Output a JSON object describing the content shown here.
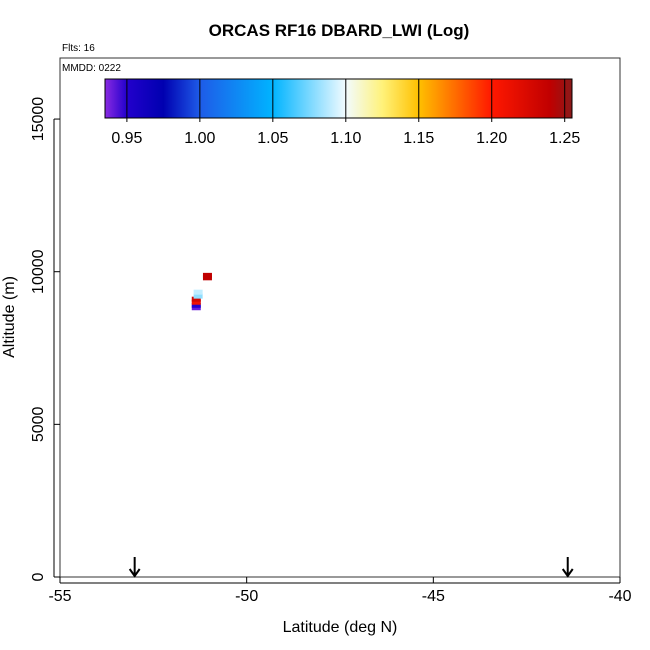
{
  "chart_data": {
    "type": "scatter",
    "title": "ORCAS RF16 DBARD_LWI (Log)",
    "annotations": {
      "flights": "Flts: 16",
      "mmdd": "MMDD: 0222"
    },
    "xlabel": "Latitude (deg N)",
    "ylabel": "Altitude (m)",
    "xlim": [
      -55,
      -40
    ],
    "ylim": [
      0,
      17000
    ],
    "xticks": [
      -55,
      -50,
      -45,
      -40
    ],
    "xtick_labels": [
      "-55",
      "-50",
      "-45",
      "-40"
    ],
    "yticks": [
      0,
      5000,
      10000,
      15000
    ],
    "ytick_labels": [
      "0",
      "5000",
      "10000",
      "15000"
    ],
    "grid": false,
    "colorbar": {
      "ticks": [
        0.95,
        1.0,
        1.05,
        1.1,
        1.15,
        1.2,
        1.25
      ],
      "tick_labels": [
        "0.95",
        "1.00",
        "1.05",
        "1.10",
        "1.15",
        "1.20",
        "1.25"
      ],
      "range": [
        0.935,
        1.255
      ],
      "stops": [
        {
          "v": 0.935,
          "color": "#8a2be2"
        },
        {
          "v": 0.95,
          "color": "#2200cc"
        },
        {
          "v": 0.975,
          "color": "#0000b0"
        },
        {
          "v": 1.0,
          "color": "#1e5be8"
        },
        {
          "v": 1.05,
          "color": "#00b4ff"
        },
        {
          "v": 1.1,
          "color": "#f2fbff"
        },
        {
          "v": 1.125,
          "color": "#fff27a"
        },
        {
          "v": 1.15,
          "color": "#ffc000"
        },
        {
          "v": 1.2,
          "color": "#ff1800"
        },
        {
          "v": 1.24,
          "color": "#c00000"
        },
        {
          "v": 1.255,
          "color": "#8b1a1a"
        }
      ]
    },
    "points": [
      {
        "lat": -51.35,
        "alt": 8820,
        "value": 0.94
      },
      {
        "lat": -51.35,
        "alt": 8900,
        "value": 0.95
      },
      {
        "lat": -51.35,
        "alt": 9000,
        "value": 1.21
      },
      {
        "lat": -51.35,
        "alt": 9100,
        "value": 1.23
      },
      {
        "lat": -51.3,
        "alt": 9200,
        "value": 1.08
      },
      {
        "lat": -51.3,
        "alt": 9330,
        "value": 1.09
      },
      {
        "lat": -51.05,
        "alt": 9800,
        "value": 1.24
      },
      {
        "lat": -51.05,
        "alt": 9880,
        "value": 1.24
      }
    ],
    "markers": [
      {
        "lat": -53.0,
        "type": "down-arrow"
      },
      {
        "lat": -41.4,
        "type": "down-arrow"
      }
    ]
  }
}
